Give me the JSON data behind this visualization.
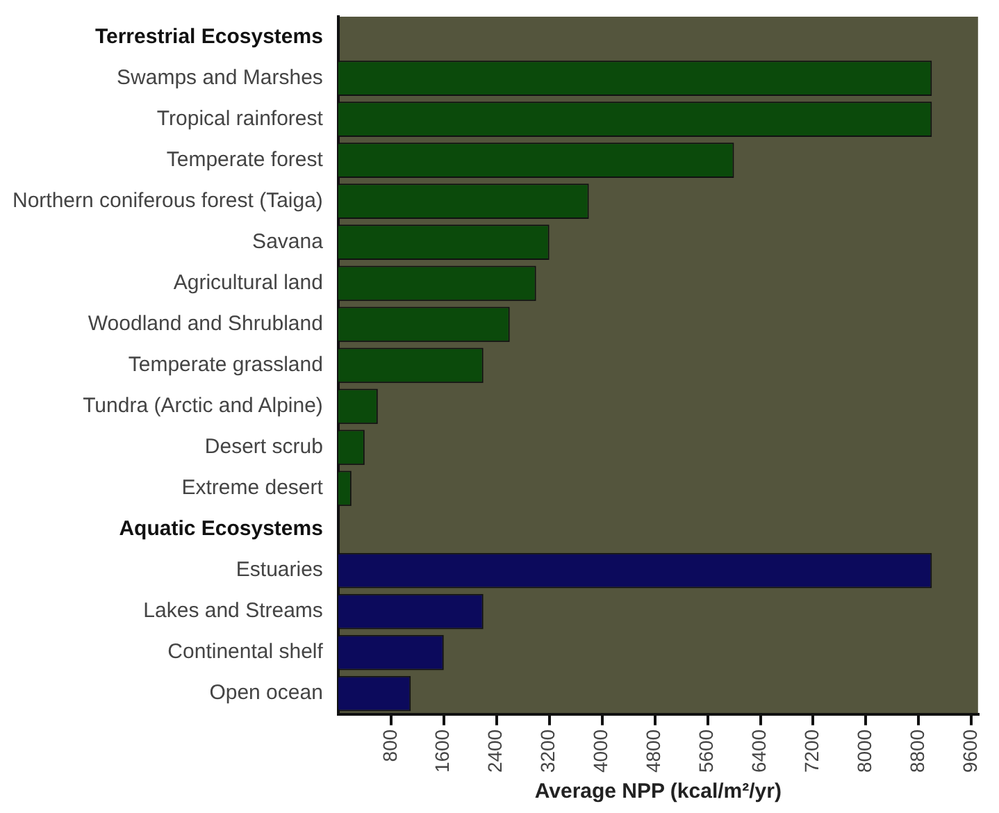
{
  "chart_data": {
    "type": "bar",
    "orientation": "horizontal",
    "xlabel": "Average NPP (kcal/m²/yr)",
    "categories": [
      "Terrestrial Ecosystems",
      "Swamps and Marshes",
      "Tropical rainforest",
      "Temperate forest",
      "Northern coniferous forest (Taiga)",
      "Savana",
      "Agricultural land",
      "Woodland and Shrubland",
      "Temperate grassland",
      "Tundra (Arctic and Alpine)",
      "Desert scrub",
      "Extreme desert",
      "Aquatic Ecosystems",
      "Estuaries",
      "Lakes and Streams",
      "Continental shelf",
      "Open ocean"
    ],
    "values": [
      null,
      9000,
      9000,
      6000,
      3800,
      3200,
      3000,
      2600,
      2200,
      600,
      400,
      200,
      null,
      9000,
      2200,
      1600,
      1100
    ],
    "colors": [
      "#0b4a0b",
      "#0b4a0b",
      "#0b4a0b",
      "#0b4a0b",
      "#0b4a0b",
      "#0b4a0b",
      "#0b4a0b",
      "#0b4a0b",
      "#0b4a0b",
      "#0b4a0b",
      "#0b4a0b",
      "#0b4a0b",
      "#0c0a5c",
      "#0c0a5c",
      "#0c0a5c",
      "#0c0a5c",
      "#0c0a5c"
    ],
    "xlim": [
      0,
      9700
    ],
    "xticks": [
      800,
      1600,
      2400,
      3200,
      4000,
      4800,
      5600,
      6400,
      7200,
      8000,
      8800,
      9600
    ],
    "grid": false,
    "legend": false
  }
}
